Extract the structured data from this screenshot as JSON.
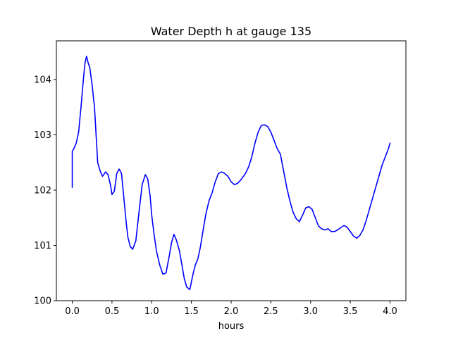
{
  "chart_data": {
    "type": "line",
    "title": "Water Depth h at gauge 135",
    "xlabel": "hours",
    "ylabel": "",
    "xlim": [
      -0.2,
      4.2
    ],
    "ylim": [
      100,
      104.7
    ],
    "xticks": [
      0.0,
      0.5,
      1.0,
      1.5,
      2.0,
      2.5,
      3.0,
      3.5,
      4.0
    ],
    "xtick_labels": [
      "0.0",
      "0.5",
      "1.0",
      "1.5",
      "2.0",
      "2.5",
      "3.0",
      "3.5",
      "4.0"
    ],
    "yticks": [
      100,
      101,
      102,
      103,
      104
    ],
    "ytick_labels": [
      "100",
      "101",
      "102",
      "103",
      "104"
    ],
    "grid": false,
    "legend": "none",
    "series": [
      {
        "color": "#0000ff",
        "x": [
          0.0,
          0.0,
          0.02,
          0.05,
          0.08,
          0.11,
          0.14,
          0.16,
          0.18,
          0.2,
          0.22,
          0.25,
          0.28,
          0.3,
          0.32,
          0.35,
          0.38,
          0.42,
          0.45,
          0.48,
          0.5,
          0.53,
          0.56,
          0.59,
          0.62,
          0.65,
          0.68,
          0.7,
          0.73,
          0.76,
          0.8,
          0.84,
          0.88,
          0.92,
          0.95,
          0.98,
          1.0,
          1.03,
          1.06,
          1.1,
          1.14,
          1.18,
          1.22,
          1.25,
          1.28,
          1.31,
          1.35,
          1.38,
          1.41,
          1.44,
          1.48,
          1.52,
          1.55,
          1.58,
          1.61,
          1.65,
          1.68,
          1.72,
          1.76,
          1.8,
          1.84,
          1.88,
          1.92,
          1.96,
          2.0,
          2.04,
          2.08,
          2.13,
          2.18,
          2.22,
          2.26,
          2.3,
          2.34,
          2.38,
          2.42,
          2.46,
          2.5,
          2.54,
          2.58,
          2.62,
          2.66,
          2.7,
          2.74,
          2.78,
          2.82,
          2.86,
          2.9,
          2.94,
          2.98,
          3.02,
          3.06,
          3.1,
          3.14,
          3.18,
          3.22,
          3.26,
          3.3,
          3.34,
          3.38,
          3.42,
          3.46,
          3.5,
          3.54,
          3.58,
          3.62,
          3.66,
          3.7,
          3.74,
          3.78,
          3.82,
          3.86,
          3.9,
          3.94,
          3.98,
          4.0
        ],
        "y": [
          102.05,
          102.7,
          102.75,
          102.85,
          103.05,
          103.5,
          104.0,
          104.3,
          104.42,
          104.3,
          104.22,
          103.9,
          103.5,
          103.0,
          102.5,
          102.35,
          102.25,
          102.33,
          102.28,
          102.1,
          101.92,
          101.98,
          102.3,
          102.38,
          102.3,
          101.85,
          101.4,
          101.15,
          100.98,
          100.93,
          101.08,
          101.6,
          102.1,
          102.28,
          102.2,
          101.9,
          101.55,
          101.2,
          100.9,
          100.65,
          100.48,
          100.5,
          100.8,
          101.05,
          101.2,
          101.1,
          100.9,
          100.65,
          100.4,
          100.25,
          100.2,
          100.48,
          100.65,
          100.75,
          100.95,
          101.3,
          101.55,
          101.8,
          101.95,
          102.15,
          102.3,
          102.33,
          102.3,
          102.25,
          102.15,
          102.1,
          102.12,
          102.2,
          102.3,
          102.42,
          102.6,
          102.85,
          103.05,
          103.17,
          103.18,
          103.15,
          103.05,
          102.9,
          102.75,
          102.65,
          102.35,
          102.05,
          101.8,
          101.6,
          101.48,
          101.43,
          101.55,
          101.68,
          101.7,
          101.65,
          101.5,
          101.35,
          101.3,
          101.28,
          101.3,
          101.25,
          101.25,
          101.28,
          101.32,
          101.36,
          101.33,
          101.25,
          101.17,
          101.13,
          101.18,
          101.28,
          101.45,
          101.65,
          101.85,
          102.05,
          102.25,
          102.45,
          102.6,
          102.75,
          102.85
        ]
      }
    ]
  }
}
